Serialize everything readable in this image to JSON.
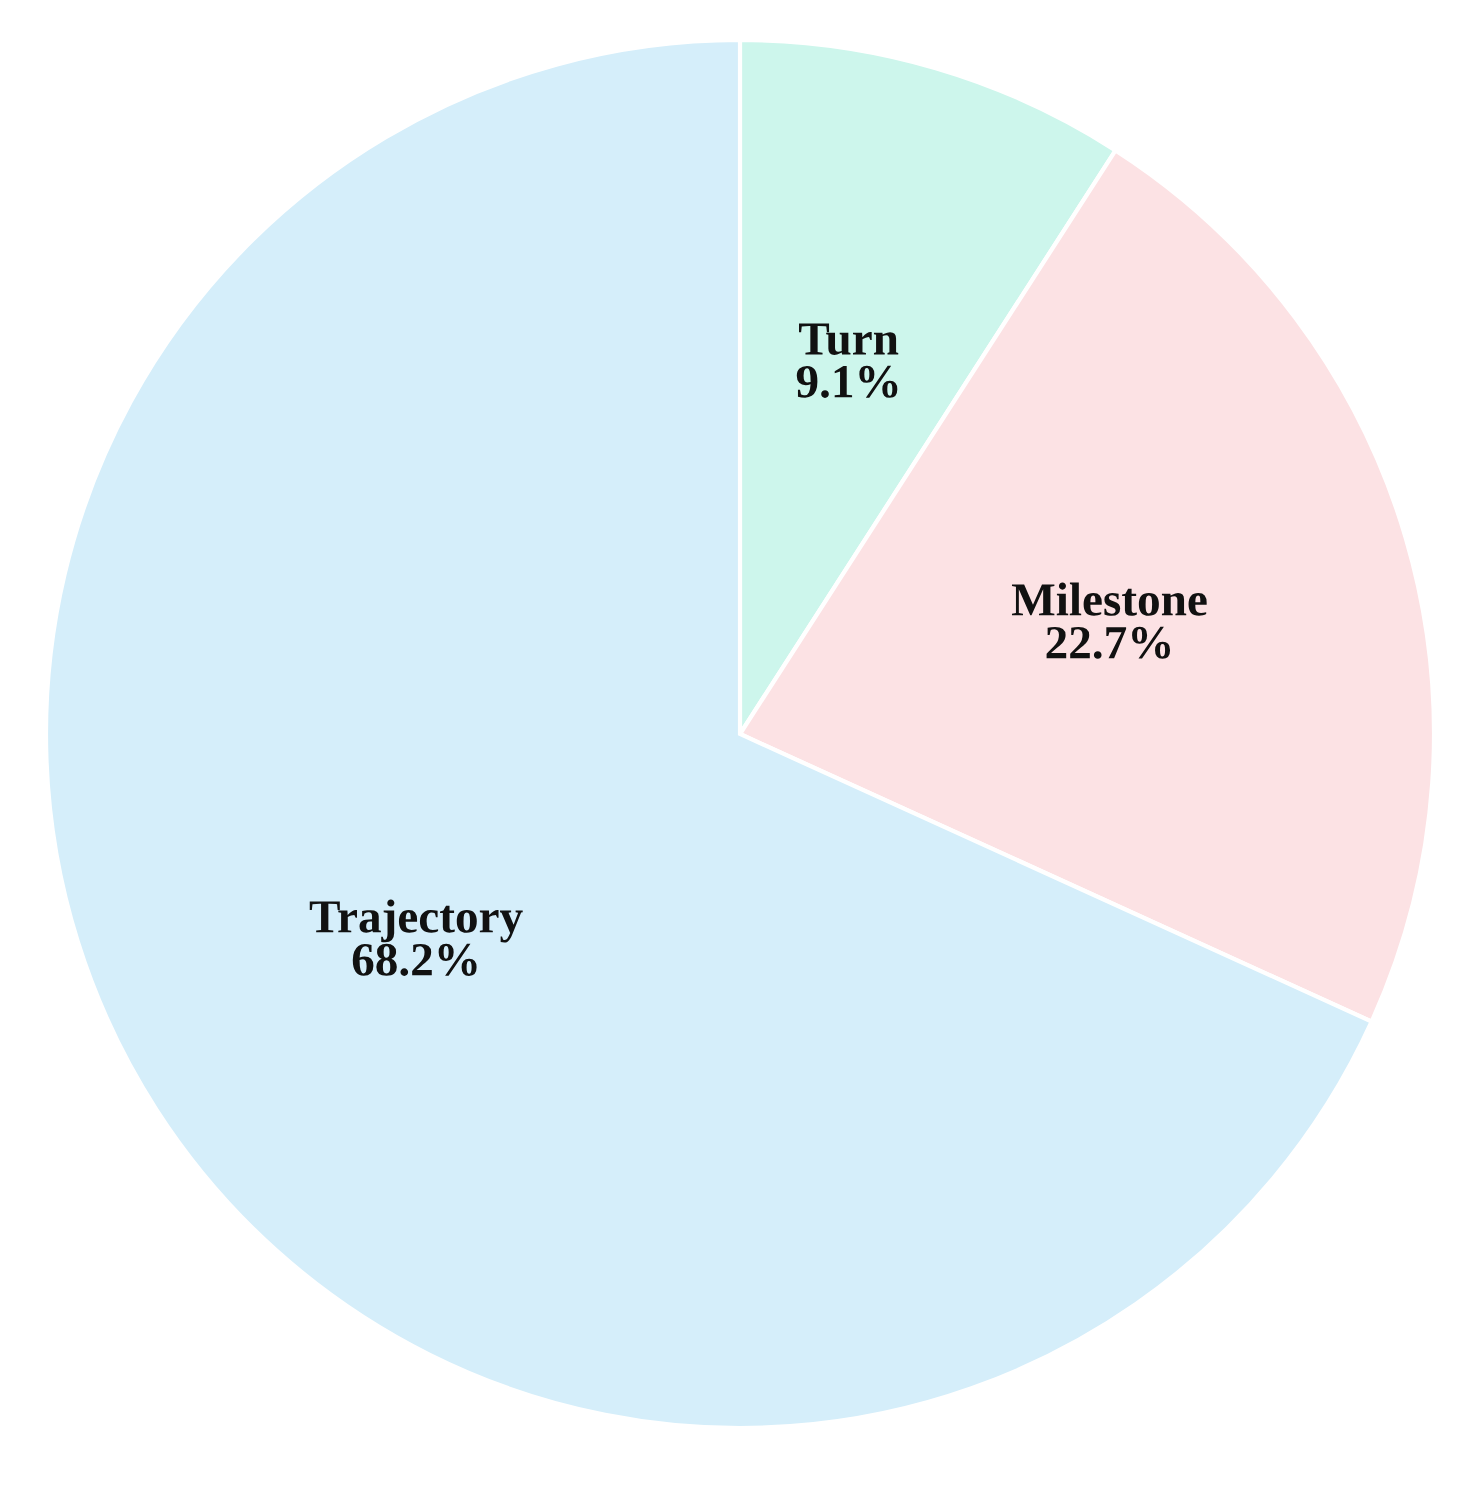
{
  "chart_data": {
    "type": "pie",
    "categories": [
      "Turn",
      "Milestone",
      "Trajectory"
    ],
    "values": [
      9.1,
      22.7,
      68.2
    ],
    "value_labels": [
      "9.1%",
      "22.7%",
      "68.2%"
    ],
    "colors": [
      "#cdf6ec",
      "#fce2e4",
      "#d5eefa"
    ]
  }
}
